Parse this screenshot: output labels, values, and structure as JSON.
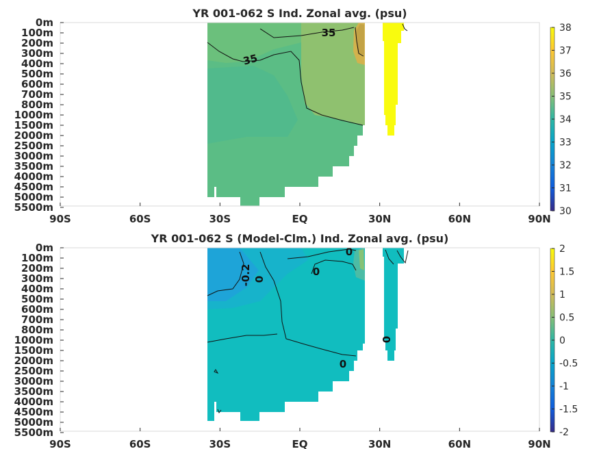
{
  "chart_data": [
    {
      "type": "heatmap",
      "title": "YR 001-062 S Ind. Zonal avg. (psu)",
      "x_ticks": [
        "90S",
        "60S",
        "30S",
        "EQ",
        "30N",
        "60N",
        "90N"
      ],
      "xlim": [
        -90,
        90
      ],
      "y_ticks": [
        "0m",
        "100m",
        "200m",
        "300m",
        "400m",
        "500m",
        "600m",
        "700m",
        "800m",
        "1000m",
        "1500m",
        "2000m",
        "2500m",
        "3000m",
        "3500m",
        "4000m",
        "4500m",
        "5000m",
        "5500m"
      ],
      "colorbar": {
        "min": 30,
        "max": 38,
        "ticks": [
          "30",
          "31",
          "32",
          "33",
          "34",
          "35",
          "36",
          "37",
          "38"
        ]
      },
      "contour_labels": [
        "35",
        "35"
      ],
      "approx_values": {
        "southern_surface_0_200m": 34.9,
        "southern_interior_300_1000m": 34.7,
        "deep_below_1500m": 34.7,
        "red_sea_persian_gulf_25N": 36.2,
        "enclosed_basin_32_38N": 38.0
      },
      "land_mask_deepest_level_by_latitude": [
        [
          -34,
          "5000m"
        ],
        [
          -32,
          "4500m"
        ],
        [
          -24,
          "5000m"
        ],
        [
          -20,
          "5500m"
        ],
        [
          -16,
          "5000m"
        ],
        [
          -10,
          "4500m"
        ],
        [
          0,
          "4000m"
        ],
        [
          6,
          "3500m"
        ],
        [
          12,
          "3000m"
        ],
        [
          17,
          "2500m"
        ],
        [
          22,
          "2000m"
        ],
        [
          24,
          "1500m"
        ],
        [
          25,
          "1000m"
        ]
      ]
    },
    {
      "type": "heatmap",
      "title": "YR 001-062 S (Model-Clm.) Ind. Zonal avg. (psu)",
      "x_ticks": [
        "90S",
        "60S",
        "30S",
        "EQ",
        "30N",
        "60N",
        "90N"
      ],
      "xlim": [
        -90,
        90
      ],
      "y_ticks": [
        "0m",
        "100m",
        "200m",
        "300m",
        "400m",
        "500m",
        "600m",
        "700m",
        "800m",
        "1000m",
        "1500m",
        "2000m",
        "2500m",
        "3000m",
        "3500m",
        "4000m",
        "4500m",
        "5000m",
        "5500m"
      ],
      "colorbar": {
        "min": -2,
        "max": 2,
        "ticks": [
          "2",
          "1.5",
          "1",
          "0.5",
          "0",
          "-0.5",
          "-1",
          "-1.5",
          "-2"
        ]
      },
      "contour_labels": [
        "-0.2",
        "0",
        "0",
        "0",
        "0",
        "0"
      ],
      "approx_values": {
        "southern_upper_ocean": -0.25,
        "interior": -0.05,
        "deep": 0.0,
        "red_sea_surface": 0.6
      }
    }
  ]
}
